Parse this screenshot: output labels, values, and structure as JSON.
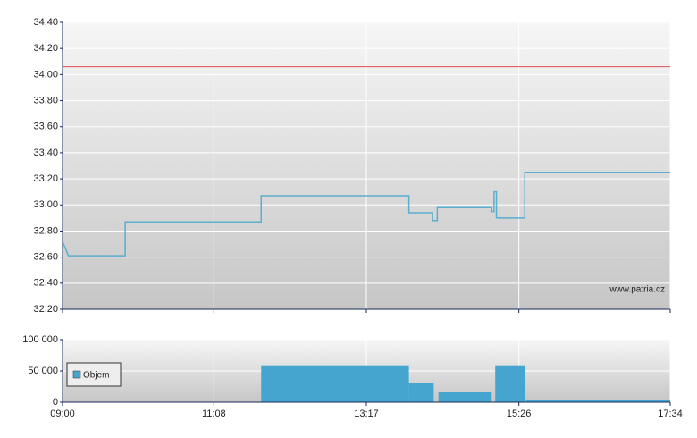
{
  "chart_data": [
    {
      "type": "line",
      "x": [
        540,
        545,
        593,
        593,
        708,
        708,
        833,
        833,
        853,
        853,
        857,
        857,
        903,
        903,
        905,
        905,
        907,
        907,
        931,
        931,
        1054
      ],
      "series": [
        {
          "color": "#5aaed0",
          "values": [
            32.72,
            32.61,
            32.61,
            32.87,
            32.87,
            33.07,
            33.07,
            32.94,
            32.94,
            32.88,
            32.88,
            32.98,
            32.98,
            32.95,
            32.95,
            33.1,
            33.1,
            32.9,
            32.9,
            33.25,
            33.25
          ]
        }
      ],
      "reference_line": {
        "value": 34.06,
        "color": "#e05050"
      },
      "xlim": [
        540,
        1054
      ],
      "ylim": [
        32.2,
        34.4
      ],
      "yticks": [
        {
          "value": 32.2,
          "label": "32,20"
        },
        {
          "value": 32.4,
          "label": "32,40"
        },
        {
          "value": 32.6,
          "label": "32,60"
        },
        {
          "value": 32.8,
          "label": "32,80"
        },
        {
          "value": 33.0,
          "label": "33,00"
        },
        {
          "value": 33.2,
          "label": "33,20"
        },
        {
          "value": 33.4,
          "label": "33,40"
        },
        {
          "value": 33.6,
          "label": "33,60"
        },
        {
          "value": 33.8,
          "label": "33,80"
        },
        {
          "value": 34.0,
          "label": "34,00"
        },
        {
          "value": 34.2,
          "label": "34,20"
        },
        {
          "value": 34.4,
          "label": "34,40"
        }
      ],
      "watermark": "www.patria.cz",
      "grid": true
    },
    {
      "type": "bar",
      "x": [
        708,
        833,
        858,
        906,
        932
      ],
      "x_end": [
        833,
        854,
        903,
        931,
        1054
      ],
      "series": [
        {
          "name": "Objem",
          "color": "#45a5cf",
          "values": [
            59000,
            31000,
            16000,
            59000,
            4000
          ]
        }
      ],
      "xlim": [
        540,
        1054
      ],
      "xticks": [
        {
          "value": 540,
          "label": "09:00"
        },
        {
          "value": 668,
          "label": "11:08"
        },
        {
          "value": 797,
          "label": "13:17"
        },
        {
          "value": 926,
          "label": "15:26"
        },
        {
          "value": 1054,
          "label": "17:34"
        }
      ],
      "ylim": [
        0,
        100000
      ],
      "yticks": [
        {
          "value": 0,
          "label": "0"
        },
        {
          "value": 50000,
          "label": "50 000"
        },
        {
          "value": 100000,
          "label": "100 000"
        }
      ],
      "grid": true
    }
  ]
}
